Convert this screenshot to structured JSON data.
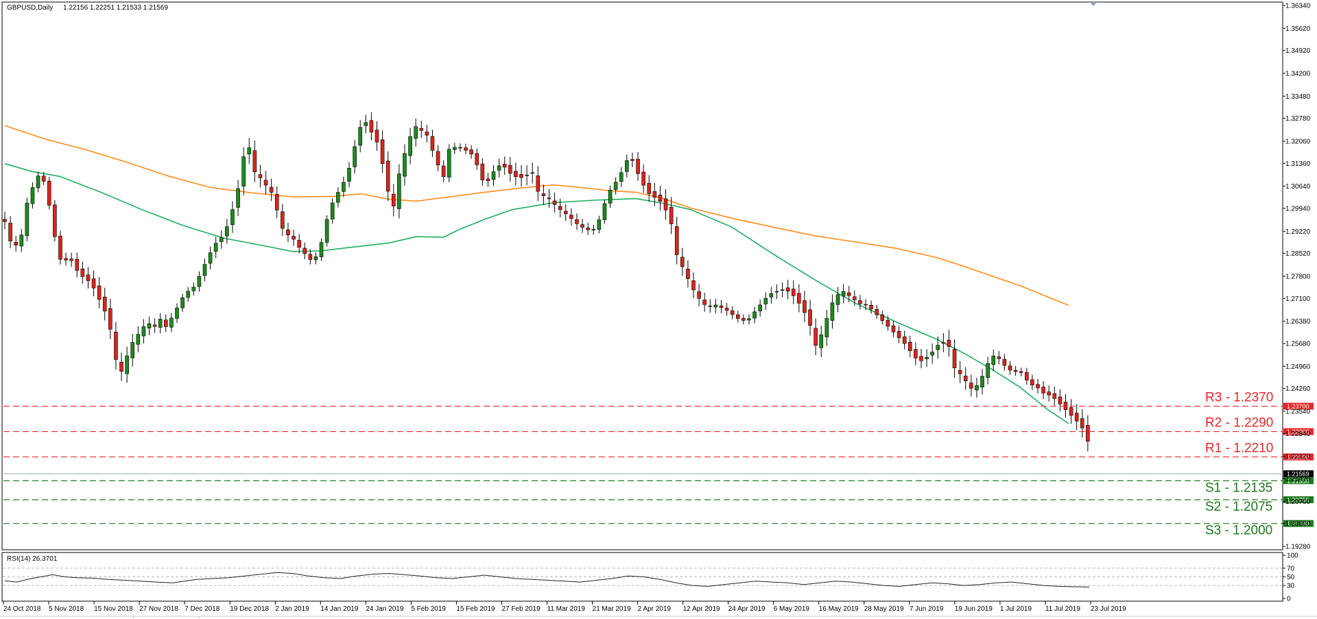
{
  "chart_data": {
    "type": "candlestick",
    "header": {
      "symbol": "GBPUSD,Daily",
      "ohlc": "1.22156 1.22251 1.21533 1.21569"
    },
    "price_axis": {
      "ticks": [
        "1.36340",
        "1.35620",
        "1.34920",
        "1.34200",
        "1.33480",
        "1.32780",
        "1.32060",
        "1.31360",
        "1.30640",
        "1.29940",
        "1.29220",
        "1.28520",
        "1.27800",
        "1.27100",
        "1.26380",
        "1.25680",
        "1.24960",
        "1.24260",
        "1.23540",
        "1.22840",
        "1.22120",
        "1.21420",
        "1.20700",
        "1.20000",
        "1.19280"
      ],
      "range": [
        1.1928,
        1.3634
      ]
    },
    "time_axis": {
      "labels": [
        "24 Oct 2018",
        "5 Nov 2018",
        "15 Nov 2018",
        "27 Nov 2018",
        "7 Dec 2018",
        "19 Dec 2018",
        "2 Jan 2019",
        "14 Jan 2019",
        "24 Jan 2019",
        "5 Feb 2019",
        "15 Feb 2019",
        "27 Feb 2019",
        "11 Mar 2019",
        "21 Mar 2019",
        "2 Apr 2019",
        "12 Apr 2019",
        "24 Apr 2019",
        "6 May 2019",
        "16 May 2019",
        "28 May 2019",
        "7 Jun 2019",
        "19 Jun 2019",
        "1 Jul 2019",
        "11 Jul 2019",
        "23 Jul 2019"
      ]
    },
    "levels": [
      {
        "label": "R3 - 1.2370",
        "tag": "1.23700",
        "value": 1.237,
        "color": "#e8262a"
      },
      {
        "label": "R2 - 1.2290",
        "tag": "1.22900",
        "value": 1.229,
        "color": "#e8262a"
      },
      {
        "label": "R1 - 1.2210",
        "tag": "1.22100",
        "value": 1.221,
        "color": "#e8262a"
      },
      {
        "label": "S1 - 1.2135",
        "tag": "1.21350",
        "value": 1.2135,
        "color": "#1b7a1b"
      },
      {
        "label": "S2 - 1.2075",
        "tag": "1.20750",
        "value": 1.2075,
        "color": "#1b7a1b"
      },
      {
        "label": "S3 - 1.2000",
        "tag": "1.20000",
        "value": 1.2,
        "color": "#1b7a1b"
      }
    ],
    "current_price": {
      "value": 1.21569,
      "tag": "1.21569"
    },
    "ma_series": [
      {
        "color": "#ff8c1a",
        "points": [
          [
            0,
            1.3255
          ],
          [
            60,
            1.3212
          ],
          [
            120,
            1.3178
          ],
          [
            180,
            1.3138
          ],
          [
            240,
            1.3095
          ],
          [
            300,
            1.306
          ],
          [
            360,
            1.3043
          ],
          [
            420,
            1.303
          ],
          [
            480,
            1.3032
          ],
          [
            520,
            1.304
          ],
          [
            560,
            1.3023
          ],
          [
            600,
            1.3017
          ],
          [
            640,
            1.3028
          ],
          [
            700,
            1.3045
          ],
          [
            760,
            1.306
          ],
          [
            800,
            1.3068
          ],
          [
            840,
            1.306
          ],
          [
            880,
            1.305
          ],
          [
            920,
            1.3045
          ],
          [
            960,
            1.3025
          ],
          [
            1000,
            1.2995
          ],
          [
            1060,
            1.2963
          ],
          [
            1120,
            1.2935
          ],
          [
            1180,
            1.2908
          ],
          [
            1240,
            1.2888
          ],
          [
            1300,
            1.2868
          ],
          [
            1360,
            1.2838
          ],
          [
            1400,
            1.281
          ],
          [
            1440,
            1.278
          ],
          [
            1480,
            1.275
          ],
          [
            1520,
            1.2715
          ],
          [
            1551,
            1.2688
          ]
        ]
      },
      {
        "color": "#1fae5f",
        "points": [
          [
            0,
            1.3135
          ],
          [
            40,
            1.311
          ],
          [
            80,
            1.3095
          ],
          [
            140,
            1.3045
          ],
          [
            200,
            1.299
          ],
          [
            260,
            1.294
          ],
          [
            320,
            1.29
          ],
          [
            380,
            1.2875
          ],
          [
            420,
            1.2858
          ],
          [
            460,
            1.286
          ],
          [
            500,
            1.287
          ],
          [
            560,
            1.2885
          ],
          [
            600,
            1.2905
          ],
          [
            640,
            1.2903
          ],
          [
            660,
            1.2925
          ],
          [
            700,
            1.296
          ],
          [
            740,
            1.299
          ],
          [
            800,
            1.3012
          ],
          [
            860,
            1.302
          ],
          [
            920,
            1.3025
          ],
          [
            960,
            1.301
          ],
          [
            1000,
            1.299
          ],
          [
            1060,
            1.2935
          ],
          [
            1120,
            1.285
          ],
          [
            1180,
            1.277
          ],
          [
            1240,
            1.2695
          ],
          [
            1300,
            1.2635
          ],
          [
            1360,
            1.258
          ],
          [
            1400,
            1.2535
          ],
          [
            1440,
            1.2485
          ],
          [
            1480,
            1.243
          ],
          [
            1520,
            1.236
          ],
          [
            1551,
            1.2315
          ]
        ]
      }
    ],
    "candle_anchors": [
      [
        0,
        1.2965
      ],
      [
        6,
        1.2905
      ],
      [
        13,
        1.2885
      ],
      [
        20,
        1.2905
      ],
      [
        27,
        1.301
      ],
      [
        32,
        1.305
      ],
      [
        38,
        1.308
      ],
      [
        44,
        1.311
      ],
      [
        51,
        1.3065
      ],
      [
        58,
        1.297
      ],
      [
        64,
        1.288
      ],
      [
        72,
        1.2805
      ],
      [
        80,
        1.284
      ],
      [
        87,
        1.28
      ],
      [
        94,
        1.2775
      ],
      [
        100,
        1.276
      ],
      [
        108,
        1.2745
      ],
      [
        116,
        1.27
      ],
      [
        124,
        1.266
      ],
      [
        131,
        1.26
      ],
      [
        138,
        1.2545
      ],
      [
        146,
        1.25
      ],
      [
        154,
        1.2555
      ],
      [
        162,
        1.26
      ],
      [
        170,
        1.262
      ],
      [
        178,
        1.265
      ],
      [
        186,
        1.2625
      ],
      [
        194,
        1.2655
      ],
      [
        201,
        1.2625
      ],
      [
        208,
        1.265
      ],
      [
        216,
        1.2685
      ],
      [
        224,
        1.272
      ],
      [
        231,
        1.2735
      ],
      [
        238,
        1.2745
      ],
      [
        246,
        1.279
      ],
      [
        254,
        1.283
      ],
      [
        262,
        1.287
      ],
      [
        270,
        1.2885
      ],
      [
        277,
        1.2915
      ],
      [
        285,
        1.2975
      ],
      [
        292,
        1.304
      ],
      [
        299,
        1.314
      ],
      [
        306,
        1.3165
      ],
      [
        313,
        1.313
      ],
      [
        320,
        1.311
      ],
      [
        327,
        1.3085
      ],
      [
        334,
        1.306
      ],
      [
        341,
        1.3
      ],
      [
        348,
        1.294
      ],
      [
        355,
        1.292
      ],
      [
        362,
        1.2905
      ],
      [
        368,
        1.288
      ],
      [
        376,
        1.2855
      ],
      [
        383,
        1.2835
      ],
      [
        390,
        1.2845
      ],
      [
        398,
        1.29
      ],
      [
        405,
        1.298
      ],
      [
        413,
        1.3025
      ],
      [
        421,
        1.3055
      ],
      [
        429,
        1.3095
      ],
      [
        436,
        1.316
      ],
      [
        443,
        1.323
      ],
      [
        450,
        1.326
      ],
      [
        457,
        1.3225
      ],
      [
        464,
        1.32
      ],
      [
        471,
        1.314
      ],
      [
        478,
        1.3035
      ],
      [
        485,
        1.3
      ],
      [
        492,
        1.311
      ],
      [
        499,
        1.3175
      ],
      [
        506,
        1.323
      ],
      [
        513,
        1.327
      ],
      [
        520,
        1.3255
      ],
      [
        527,
        1.3245
      ],
      [
        534,
        1.3195
      ],
      [
        541,
        1.3145
      ],
      [
        549,
        1.31
      ],
      [
        556,
        1.3185
      ],
      [
        564,
        1.319
      ],
      [
        571,
        1.3185
      ],
      [
        578,
        1.3175
      ],
      [
        585,
        1.316
      ],
      [
        592,
        1.312
      ],
      [
        600,
        1.306
      ],
      [
        607,
        1.308
      ],
      [
        614,
        1.311
      ],
      [
        621,
        1.312
      ],
      [
        628,
        1.3105
      ],
      [
        635,
        1.308
      ],
      [
        642,
        1.3075
      ],
      [
        650,
        1.307
      ],
      [
        657,
        1.3085
      ],
      [
        664,
        1.308
      ],
      [
        671,
        1.3055
      ],
      [
        678,
        1.305
      ],
      [
        685,
        1.303
      ],
      [
        692,
        1.301
      ],
      [
        699,
        1.2995
      ],
      [
        706,
        1.298
      ],
      [
        713,
        1.296
      ],
      [
        720,
        1.2945
      ],
      [
        727,
        1.2935
      ],
      [
        734,
        1.2925
      ],
      [
        741,
        1.294
      ],
      [
        748,
        1.299
      ],
      [
        755,
        1.304
      ],
      [
        762,
        1.3065
      ],
      [
        769,
        1.3085
      ],
      [
        776,
        1.313
      ],
      [
        783,
        1.315
      ],
      [
        790,
        1.3105
      ],
      [
        797,
        1.3065
      ],
      [
        804,
        1.303
      ],
      [
        811,
        1.3015
      ],
      [
        818,
        1.3005
      ],
      [
        825,
        1.298
      ],
      [
        832,
        1.294
      ],
      [
        839,
        1.288
      ],
      [
        846,
        1.284
      ],
      [
        853,
        1.28
      ],
      [
        860,
        1.276
      ],
      [
        867,
        1.273
      ],
      [
        874,
        1.2705
      ],
      [
        881,
        1.2695
      ],
      [
        888,
        1.27
      ],
      [
        895,
        1.269
      ],
      [
        902,
        1.268
      ],
      [
        909,
        1.2665
      ],
      [
        916,
        1.265
      ],
      [
        923,
        1.264
      ],
      [
        930,
        1.264
      ],
      [
        937,
        1.266
      ],
      [
        944,
        1.268
      ],
      [
        951,
        1.27
      ],
      [
        958,
        1.2715
      ],
      [
        965,
        1.272
      ],
      [
        972,
        1.2725
      ],
      [
        979,
        1.272
      ],
      [
        986,
        1.2705
      ],
      [
        993,
        1.268
      ],
      [
        1000,
        1.265
      ],
      [
        1007,
        1.2605
      ],
      [
        1014,
        1.258
      ],
      [
        1021,
        1.261
      ],
      [
        1028,
        1.266
      ],
      [
        1035,
        1.271
      ],
      [
        1042,
        1.2735
      ],
      [
        1049,
        1.2745
      ],
      [
        1056,
        1.273
      ],
      [
        1063,
        1.2715
      ],
      [
        1070,
        1.27
      ],
      [
        1077,
        1.2695
      ],
      [
        1084,
        1.268
      ],
      [
        1091,
        1.266
      ],
      [
        1098,
        1.264
      ],
      [
        1105,
        1.262
      ],
      [
        1112,
        1.26
      ],
      [
        1119,
        1.258
      ],
      [
        1126,
        1.256
      ],
      [
        1133,
        1.2535
      ],
      [
        1140,
        1.251
      ],
      [
        1147,
        1.25
      ],
      [
        1154,
        1.251
      ],
      [
        1161,
        1.2525
      ],
      [
        1168,
        1.2545
      ],
      [
        1175,
        1.255
      ],
      [
        1182,
        1.2535
      ],
      [
        1189,
        1.251
      ],
      [
        1196,
        1.249
      ],
      [
        1203,
        1.2465
      ],
      [
        1210,
        1.244
      ],
      [
        1217,
        1.245
      ],
      [
        1224,
        1.248
      ],
      [
        1231,
        1.252
      ],
      [
        1238,
        1.254
      ],
      [
        1245,
        1.2525
      ],
      [
        1252,
        1.25
      ],
      [
        1259,
        1.2485
      ],
      [
        1266,
        1.248
      ],
      [
        1273,
        1.2475
      ],
      [
        1280,
        1.2445
      ],
      [
        1287,
        1.243
      ],
      [
        1294,
        1.242
      ],
      [
        1301,
        1.24
      ],
      [
        1308,
        1.2395
      ],
      [
        1315,
        1.238
      ],
      [
        1322,
        1.236
      ],
      [
        1329,
        1.234
      ],
      [
        1336,
        1.232
      ],
      [
        1343,
        1.23
      ],
      [
        1350,
        1.2275
      ],
      [
        1357,
        1.2225
      ]
    ],
    "rsi": {
      "label": "RSI(14) 26.3701",
      "value": 26.3701,
      "ticks": [
        "100",
        "70",
        "50",
        "30",
        "0"
      ],
      "range": [
        0,
        100
      ],
      "levels": [
        70,
        50,
        30
      ],
      "points": [
        [
          0,
          41
        ],
        [
          15,
          38
        ],
        [
          30,
          45
        ],
        [
          45,
          50
        ],
        [
          60,
          55
        ],
        [
          75,
          50
        ],
        [
          90,
          48
        ],
        [
          110,
          47
        ],
        [
          130,
          44
        ],
        [
          150,
          42
        ],
        [
          170,
          40
        ],
        [
          190,
          38
        ],
        [
          210,
          36
        ],
        [
          225,
          40
        ],
        [
          240,
          44
        ],
        [
          260,
          46
        ],
        [
          280,
          48
        ],
        [
          300,
          52
        ],
        [
          320,
          56
        ],
        [
          340,
          60
        ],
        [
          360,
          58
        ],
        [
          380,
          52
        ],
        [
          400,
          48
        ],
        [
          420,
          46
        ],
        [
          440,
          52
        ],
        [
          460,
          56
        ],
        [
          480,
          58
        ],
        [
          500,
          55
        ],
        [
          520,
          52
        ],
        [
          540,
          48
        ],
        [
          560,
          46
        ],
        [
          580,
          50
        ],
        [
          600,
          54
        ],
        [
          620,
          50
        ],
        [
          640,
          46
        ],
        [
          660,
          44
        ],
        [
          680,
          42
        ],
        [
          700,
          40
        ],
        [
          720,
          38
        ],
        [
          740,
          42
        ],
        [
          760,
          46
        ],
        [
          780,
          52
        ],
        [
          800,
          50
        ],
        [
          820,
          44
        ],
        [
          840,
          36
        ],
        [
          860,
          30
        ],
        [
          880,
          28
        ],
        [
          900,
          32
        ],
        [
          920,
          36
        ],
        [
          940,
          40
        ],
        [
          960,
          38
        ],
        [
          980,
          36
        ],
        [
          1000,
          32
        ],
        [
          1020,
          36
        ],
        [
          1040,
          40
        ],
        [
          1060,
          38
        ],
        [
          1080,
          34
        ],
        [
          1100,
          30
        ],
        [
          1120,
          28
        ],
        [
          1140,
          32
        ],
        [
          1160,
          36
        ],
        [
          1180,
          34
        ],
        [
          1200,
          30
        ],
        [
          1220,
          32
        ],
        [
          1240,
          36
        ],
        [
          1260,
          38
        ],
        [
          1280,
          34
        ],
        [
          1300,
          30
        ],
        [
          1320,
          28
        ],
        [
          1340,
          27
        ],
        [
          1357,
          26.37
        ]
      ]
    }
  }
}
